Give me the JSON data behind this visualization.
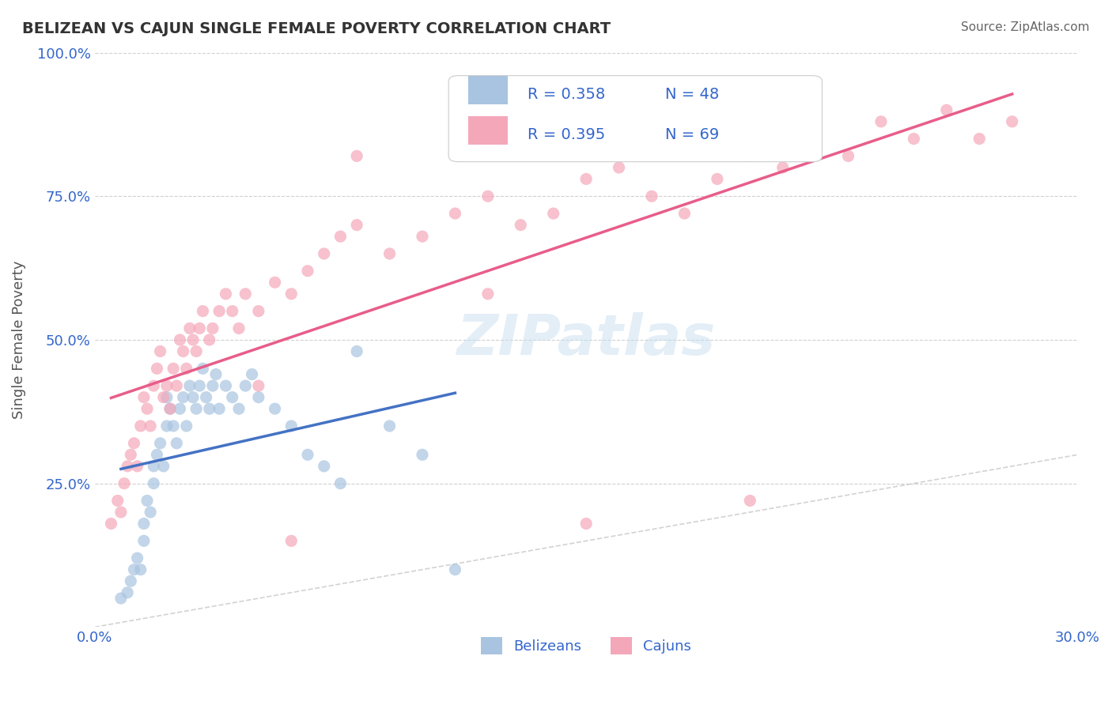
{
  "title": "BELIZEAN VS CAJUN SINGLE FEMALE POVERTY CORRELATION CHART",
  "source": "Source: ZipAtlas.com",
  "ylabel": "Single Female Poverty",
  "xlabel": "",
  "xlim": [
    0.0,
    0.3
  ],
  "ylim": [
    0.0,
    1.0
  ],
  "xtick_labels": [
    "0.0%",
    "30.0%"
  ],
  "ytick_labels": [
    "25.0%",
    "50.0%",
    "75.0%",
    "100.0%"
  ],
  "ytick_positions": [
    0.25,
    0.5,
    0.75,
    1.0
  ],
  "watermark": "ZIPatlas",
  "legend_r1": "R = 0.358",
  "legend_n1": "N = 48",
  "legend_r2": "R = 0.395",
  "legend_n2": "N = 69",
  "belizean_color": "#a8c4e0",
  "cajun_color": "#f4a7b9",
  "trendline1_color": "#4472c4",
  "trendline2_color": "#e85d8a",
  "diag_color": "#c0c0c0",
  "background_color": "#ffffff",
  "belizeans_label": "Belizeans",
  "cajuns_label": "Cajuns",
  "belizean_x": [
    0.008,
    0.01,
    0.011,
    0.012,
    0.013,
    0.014,
    0.015,
    0.015,
    0.016,
    0.017,
    0.018,
    0.018,
    0.019,
    0.02,
    0.021,
    0.022,
    0.022,
    0.023,
    0.024,
    0.025,
    0.026,
    0.027,
    0.028,
    0.029,
    0.03,
    0.031,
    0.032,
    0.033,
    0.034,
    0.035,
    0.036,
    0.037,
    0.038,
    0.04,
    0.042,
    0.044,
    0.046,
    0.048,
    0.05,
    0.055,
    0.06,
    0.065,
    0.07,
    0.075,
    0.08,
    0.09,
    0.1,
    0.11
  ],
  "belizean_y": [
    0.05,
    0.06,
    0.08,
    0.1,
    0.12,
    0.1,
    0.15,
    0.18,
    0.22,
    0.2,
    0.25,
    0.28,
    0.3,
    0.32,
    0.28,
    0.35,
    0.4,
    0.38,
    0.35,
    0.32,
    0.38,
    0.4,
    0.35,
    0.42,
    0.4,
    0.38,
    0.42,
    0.45,
    0.4,
    0.38,
    0.42,
    0.44,
    0.38,
    0.42,
    0.4,
    0.38,
    0.42,
    0.44,
    0.4,
    0.38,
    0.35,
    0.3,
    0.28,
    0.25,
    0.48,
    0.35,
    0.3,
    0.1
  ],
  "cajun_x": [
    0.005,
    0.007,
    0.008,
    0.009,
    0.01,
    0.011,
    0.012,
    0.013,
    0.014,
    0.015,
    0.016,
    0.017,
    0.018,
    0.019,
    0.02,
    0.021,
    0.022,
    0.023,
    0.024,
    0.025,
    0.026,
    0.027,
    0.028,
    0.029,
    0.03,
    0.031,
    0.032,
    0.033,
    0.035,
    0.036,
    0.038,
    0.04,
    0.042,
    0.044,
    0.046,
    0.05,
    0.055,
    0.06,
    0.065,
    0.07,
    0.075,
    0.08,
    0.09,
    0.1,
    0.11,
    0.12,
    0.13,
    0.14,
    0.15,
    0.16,
    0.17,
    0.18,
    0.19,
    0.2,
    0.21,
    0.22,
    0.23,
    0.24,
    0.25,
    0.26,
    0.27,
    0.28,
    0.18,
    0.12,
    0.08,
    0.06,
    0.05,
    0.15,
    0.2
  ],
  "cajun_y": [
    0.18,
    0.22,
    0.2,
    0.25,
    0.28,
    0.3,
    0.32,
    0.28,
    0.35,
    0.4,
    0.38,
    0.35,
    0.42,
    0.45,
    0.48,
    0.4,
    0.42,
    0.38,
    0.45,
    0.42,
    0.5,
    0.48,
    0.45,
    0.52,
    0.5,
    0.48,
    0.52,
    0.55,
    0.5,
    0.52,
    0.55,
    0.58,
    0.55,
    0.52,
    0.58,
    0.55,
    0.6,
    0.58,
    0.62,
    0.65,
    0.68,
    0.7,
    0.65,
    0.68,
    0.72,
    0.75,
    0.7,
    0.72,
    0.78,
    0.8,
    0.75,
    0.72,
    0.78,
    0.82,
    0.8,
    0.85,
    0.82,
    0.88,
    0.85,
    0.9,
    0.85,
    0.88,
    0.88,
    0.58,
    0.82,
    0.15,
    0.42,
    0.18,
    0.22
  ]
}
